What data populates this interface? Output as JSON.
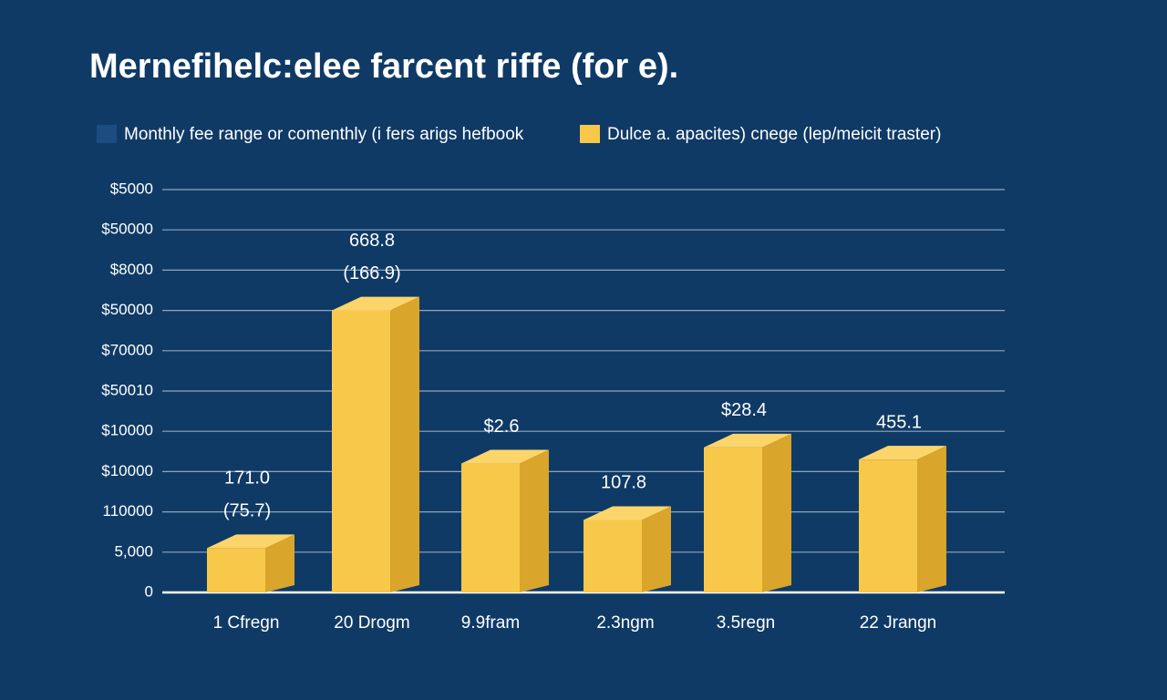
{
  "chart_data": {
    "type": "bar3d",
    "title": "Mernefihelc:elee farcent riffe (for e).",
    "legend": [
      {
        "name": "Monthly fee range or comenthly (i fers arigs hefbook",
        "color": "#1d4c80"
      },
      {
        "name": "Dulce a. apacites) cnege (lep/meicit traster)",
        "color": "#f7c84a"
      }
    ],
    "categories": [
      "1 Cfregn",
      "20 Drogm",
      "9.9fram",
      "2.3ngm",
      "3.5regn",
      "22 Jrangn"
    ],
    "values": [
      1.1,
      7.0,
      3.2,
      1.8,
      3.6,
      3.3
    ],
    "color": "#f7c84a",
    "annotations": [
      [
        "171.0",
        "(75.7)"
      ],
      [
        "668.8",
        "(166.9)"
      ],
      [
        "$2.6"
      ],
      [
        "107.8"
      ],
      [
        "$28.4"
      ],
      [
        "455.1"
      ]
    ],
    "ylim": [
      0,
      10
    ],
    "yticks": [
      0,
      {
        "value": 1,
        "label": "5,000"
      },
      {
        "value": 2,
        "label": "110000"
      },
      {
        "value": 3,
        "label": "$10000"
      },
      {
        "value": 4,
        "label": "$10000"
      },
      {
        "value": 5,
        "label": "$50010"
      },
      {
        "value": 6,
        "label": "$70000"
      },
      {
        "value": 7,
        "label": "$50000"
      },
      {
        "value": 8,
        "label": "$8000"
      },
      {
        "value": 9,
        "label": "$50000"
      },
      {
        "value": 10,
        "label": "$5000"
      }
    ],
    "grid": true
  }
}
